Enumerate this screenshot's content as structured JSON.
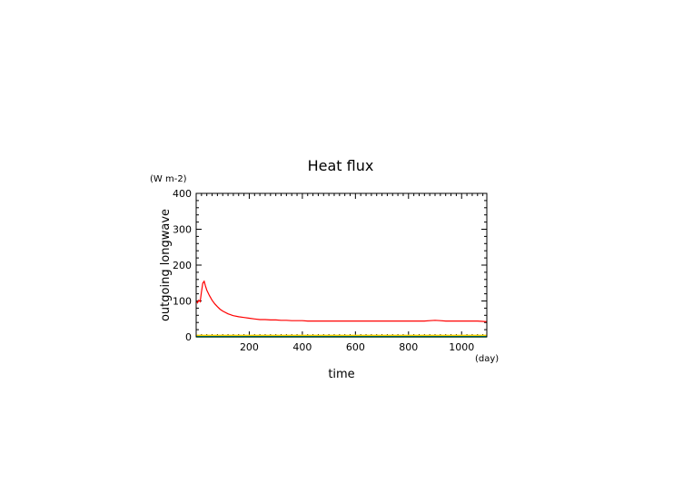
{
  "chart_data": {
    "type": "line",
    "title": "Heat flux",
    "xlabel": "time",
    "ylabel": "outgoing longwave",
    "yunit": "(W m-2)",
    "xunit": "(day)",
    "xlim": [
      0,
      1095
    ],
    "ylim": [
      0,
      400
    ],
    "xticks": [
      200,
      400,
      600,
      800,
      1000
    ],
    "yticks": [
      0,
      100,
      200,
      300,
      400
    ],
    "grid": false,
    "series": [
      {
        "color": "#ff0000",
        "x": [
          0,
          5,
          10,
          15,
          20,
          25,
          30,
          35,
          40,
          50,
          60,
          70,
          80,
          90,
          100,
          120,
          140,
          160,
          180,
          200,
          220,
          240,
          260,
          280,
          300,
          320,
          340,
          360,
          380,
          400,
          420,
          440,
          460,
          480,
          500,
          520,
          540,
          560,
          580,
          600,
          620,
          640,
          660,
          680,
          700,
          720,
          740,
          760,
          780,
          800,
          820,
          840,
          860,
          880,
          900,
          920,
          940,
          960,
          980,
          1000,
          1020,
          1040,
          1060,
          1080,
          1095
        ],
        "y": [
          100,
          95,
          102,
          98,
          125,
          150,
          155,
          142,
          130,
          115,
          102,
          92,
          84,
          77,
          72,
          64,
          59,
          56,
          54,
          52,
          50,
          48,
          48,
          47,
          47,
          46,
          46,
          45,
          45,
          45,
          44,
          44,
          44,
          44,
          44,
          44,
          44,
          44,
          44,
          44,
          44,
          44,
          44,
          44,
          44,
          44,
          44,
          44,
          44,
          44,
          44,
          44,
          44,
          45,
          46,
          45,
          44,
          44,
          44,
          44,
          44,
          44,
          44,
          43,
          42
        ]
      },
      {
        "color": "#ffd700",
        "x": [
          0,
          1095
        ],
        "y": [
          4,
          4
        ]
      },
      {
        "color": "#00c8ff",
        "x": [
          0,
          1095
        ],
        "y": [
          0.5,
          0.5
        ]
      },
      {
        "color": "#00aa44",
        "x": [
          0,
          1095
        ],
        "y": [
          0,
          0
        ]
      }
    ]
  }
}
